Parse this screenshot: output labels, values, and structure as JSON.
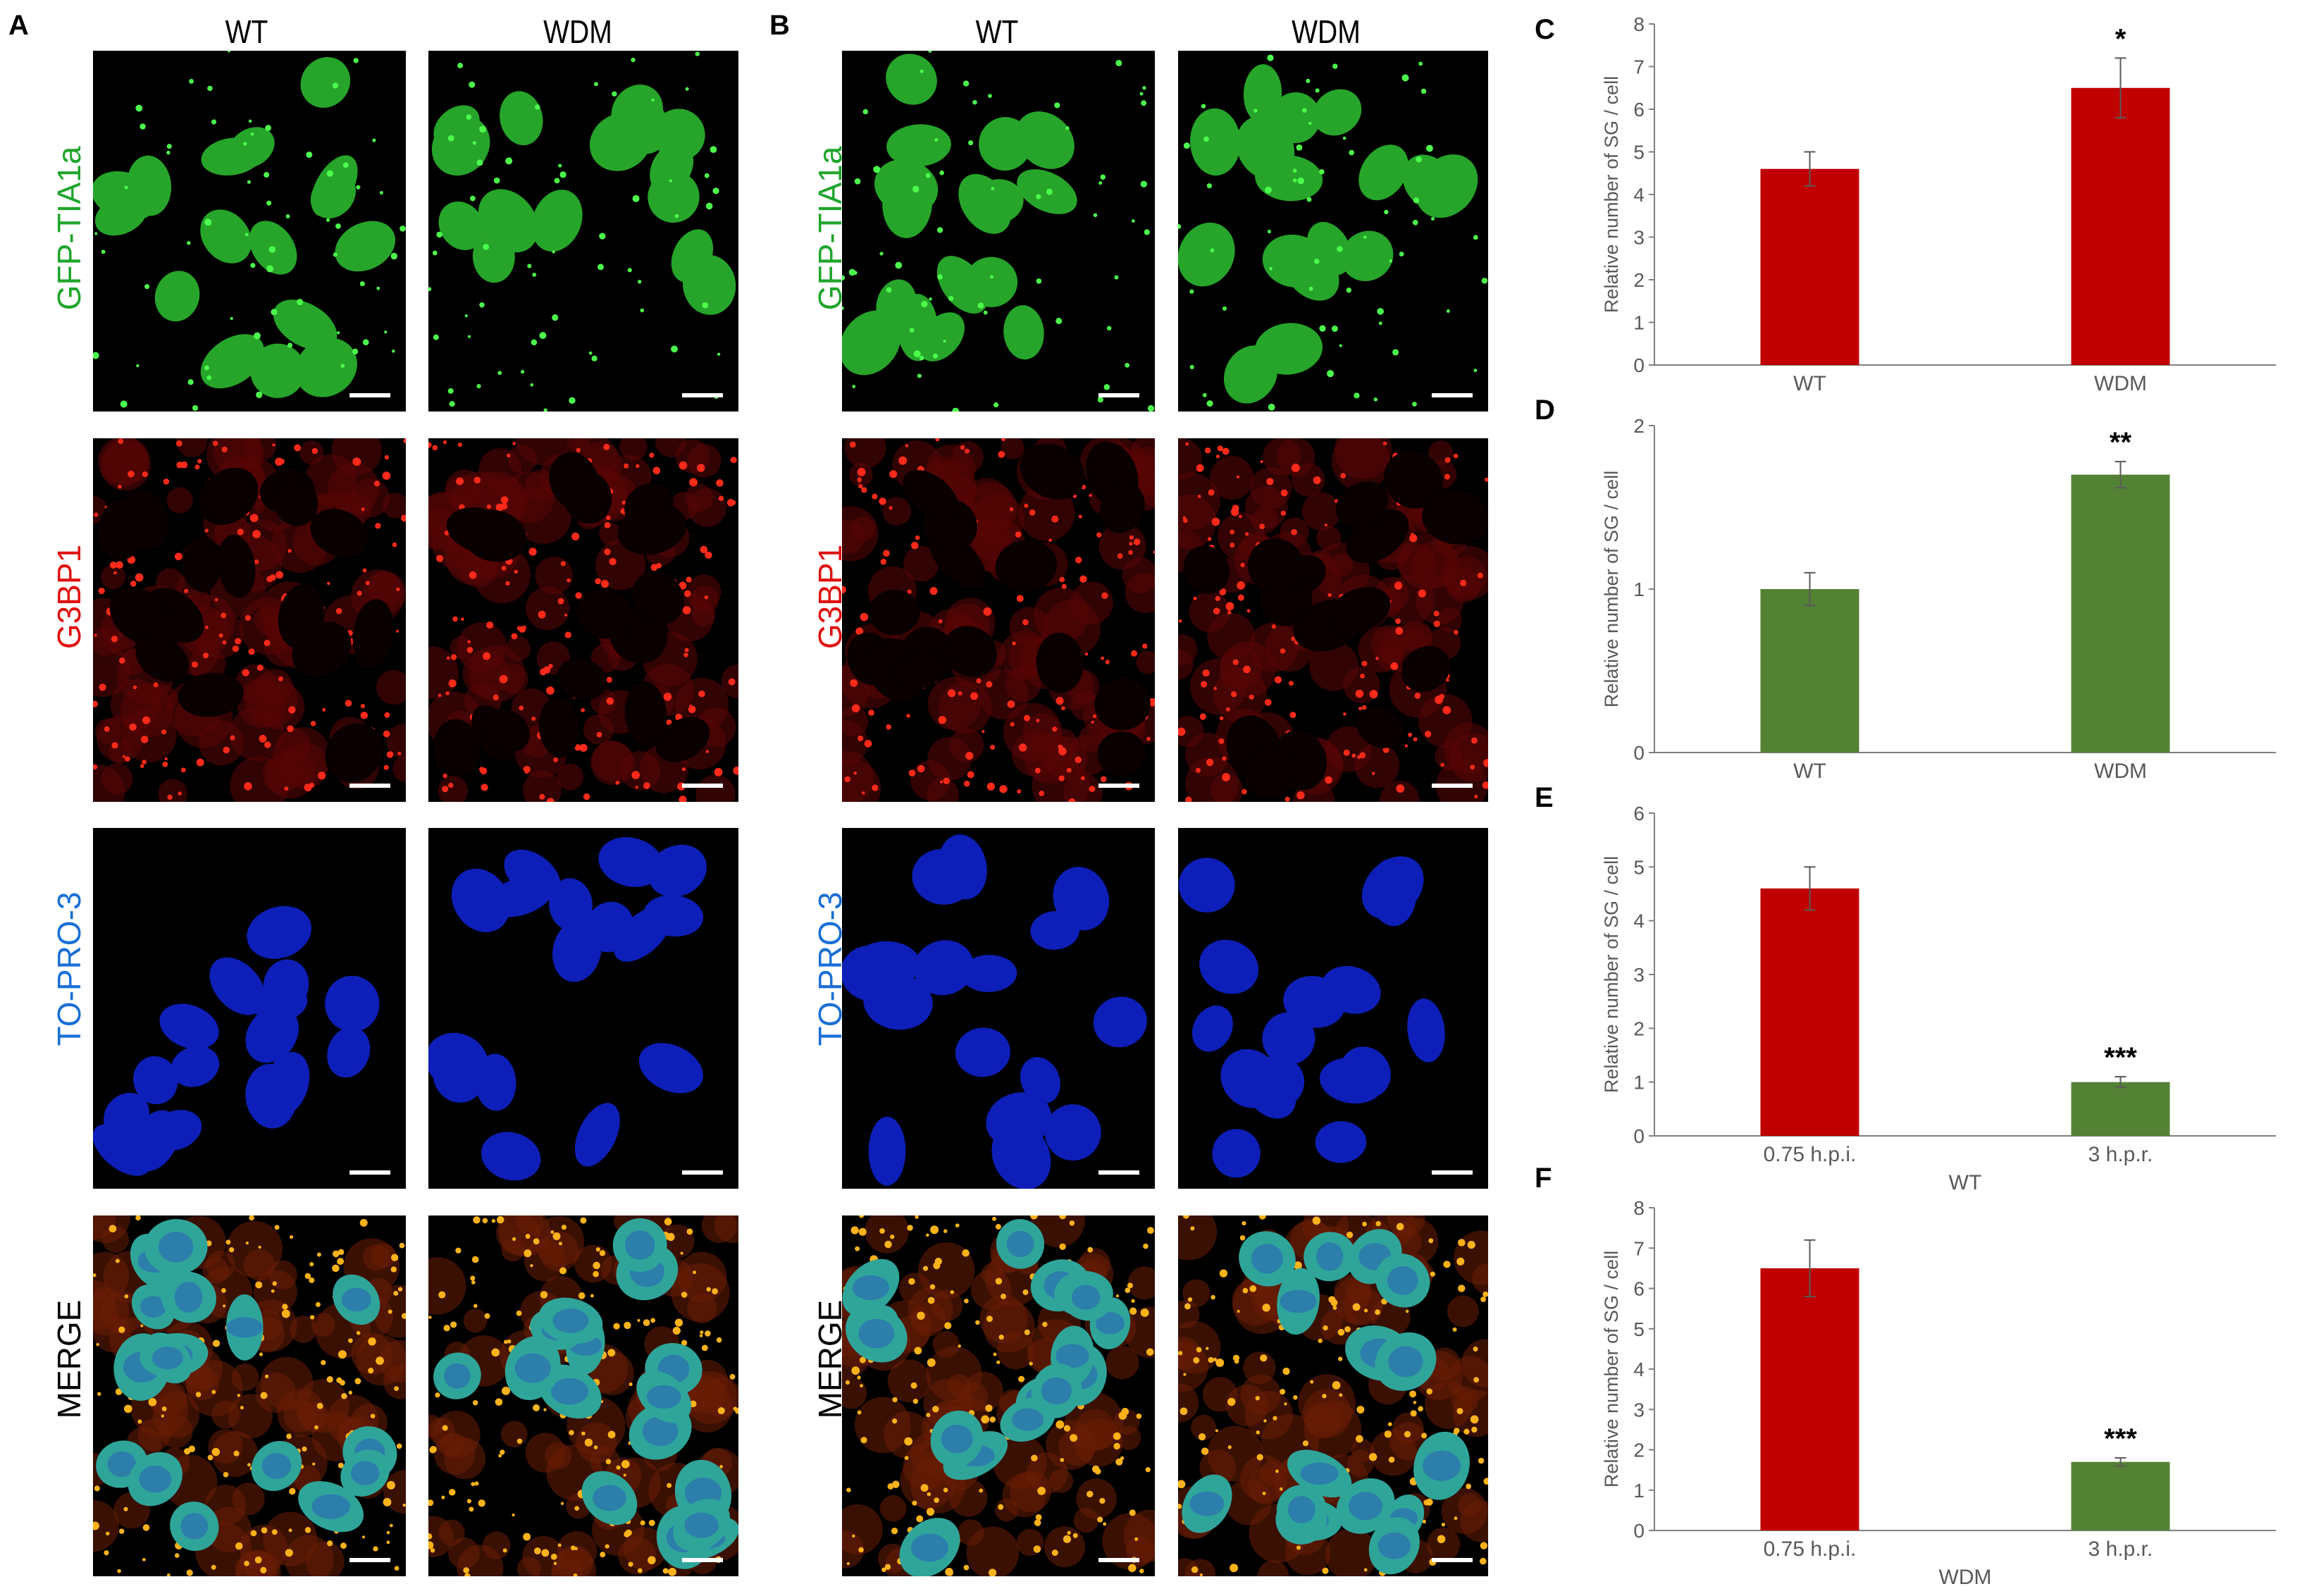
{
  "figure": {
    "panel_letters": [
      "A",
      "B",
      "C",
      "D",
      "E",
      "F"
    ],
    "columns": [
      "WT",
      "WDM"
    ],
    "rows": [
      {
        "label": "GFP-TIA1a",
        "color": "#1fa52b",
        "channel": "green"
      },
      {
        "label": "G3BP1",
        "color": "#e01010",
        "channel": "red"
      },
      {
        "label": "TO-PRO-3",
        "color": "#1a6fd6",
        "channel": "blue"
      },
      {
        "label": "MERGE",
        "color": "#000000",
        "channel": "merge"
      }
    ]
  },
  "chart_data": [
    {
      "panel": "C",
      "type": "bar",
      "categories": [
        "WT",
        "WDM"
      ],
      "values": [
        4.6,
        6.5
      ],
      "errors": [
        0.4,
        0.7
      ],
      "colors": [
        "#c00000",
        "#c00000"
      ],
      "significance": [
        "",
        "*"
      ],
      "ylabel": "Relative number of SG / cell",
      "xlabel": "",
      "ylim": [
        0,
        8
      ],
      "yticks": [
        0,
        1,
        2,
        3,
        4,
        5,
        6,
        7,
        8
      ]
    },
    {
      "panel": "D",
      "type": "bar",
      "categories": [
        "WT",
        "WDM"
      ],
      "values": [
        1.0,
        1.7
      ],
      "errors": [
        0.1,
        0.08
      ],
      "colors": [
        "#548235",
        "#548235"
      ],
      "significance": [
        "",
        "**"
      ],
      "ylabel": "Relative number of SG / cell",
      "xlabel": "",
      "ylim": [
        0,
        2
      ],
      "yticks": [
        0,
        1,
        2
      ]
    },
    {
      "panel": "E",
      "type": "bar",
      "categories": [
        "0.75 h.p.i.",
        "3 h.p.r."
      ],
      "values": [
        4.6,
        1.0
      ],
      "errors": [
        0.4,
        0.1
      ],
      "colors": [
        "#c00000",
        "#548235"
      ],
      "significance": [
        "",
        "***"
      ],
      "ylabel": "Relative number of SG / cell",
      "xlabel": "WT",
      "ylim": [
        0,
        6
      ],
      "yticks": [
        0,
        1,
        2,
        3,
        4,
        5,
        6
      ]
    },
    {
      "panel": "F",
      "type": "bar",
      "categories": [
        "0.75 h.p.i.",
        "3 h.p.r."
      ],
      "values": [
        6.5,
        1.7
      ],
      "errors": [
        0.7,
        0.1
      ],
      "colors": [
        "#c00000",
        "#548235"
      ],
      "significance": [
        "",
        "***"
      ],
      "ylabel": "Relative number of SG / cell",
      "xlabel": "WDM",
      "ylim": [
        0,
        8
      ],
      "yticks": [
        0,
        1,
        2,
        3,
        4,
        5,
        6,
        7,
        8
      ]
    }
  ]
}
